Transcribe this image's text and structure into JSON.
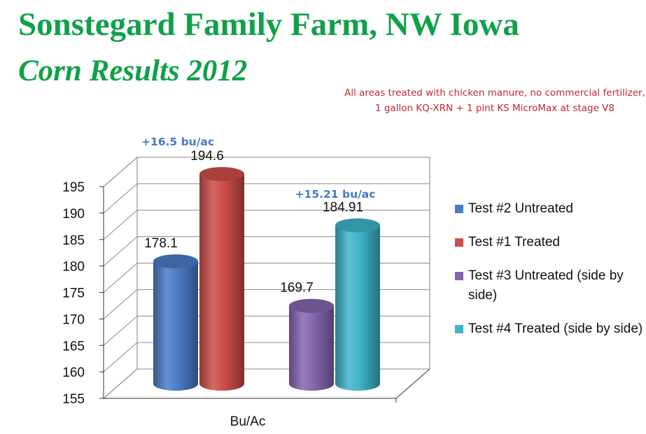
{
  "slide": {
    "title": "Sonstegard Family Farm, NW Iowa",
    "subtitle": "Corn Results 2012",
    "note": "All areas treated with chicken manure, no commercial fertilizer, 1 gallon KQ-XRN + 1 pint KS MicroMax at stage V8"
  },
  "chart_data": {
    "type": "bar",
    "style": "3d-cylinder",
    "xlabel": "Bu/Ac",
    "ylim": [
      155,
      195
    ],
    "ytick_step": 5,
    "grid": true,
    "legend_position": "right",
    "series": [
      {
        "name": "Test #2 Untreated",
        "value": 178.1,
        "label": "178.1",
        "color": "#4a7cc6",
        "group": 0
      },
      {
        "name": "Test #1 Treated",
        "value": 194.6,
        "label": "194.6",
        "color": "#cc4d4a",
        "group": 0
      },
      {
        "name": "Test #3 Untreated (side by side)",
        "value": 169.7,
        "label": "169.7",
        "color": "#8466b0",
        "group": 1
      },
      {
        "name": "Test #4 Treated (side by side)",
        "value": 184.91,
        "label": "184.91",
        "color": "#3fb4cc",
        "group": 1
      }
    ],
    "annotations": [
      {
        "text": "+16.5 bu/ac",
        "group": 0
      },
      {
        "text": "+15.21 bu/ac",
        "group": 1
      }
    ]
  }
}
